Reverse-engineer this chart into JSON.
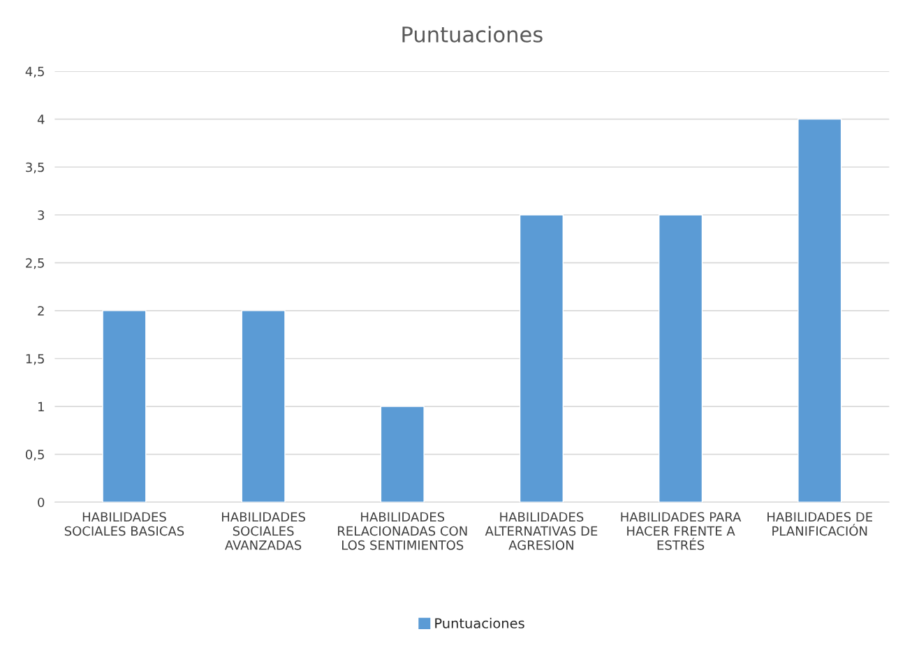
{
  "chart_data": {
    "type": "bar",
    "title": "Puntuaciones",
    "categories": [
      "HABILIDADES SOCIALES BASICAS",
      "HABILIDADES SOCIALES AVANZADAS",
      "HABILIDADES RELACIONADAS CON LOS SENTIMIENTOS",
      "HABILIDADES ALTERNATIVAS DE AGRESION",
      "HABILIDADES PARA HACER FRENTE A ESTRÉS",
      "HABILIDADES DE PLANIFICACIÓN"
    ],
    "series": [
      {
        "name": "Puntuaciones",
        "color": "#5b9bd5",
        "values": [
          2,
          2,
          1,
          3,
          3,
          4
        ]
      }
    ],
    "ylim": [
      0,
      4.5
    ],
    "yticks": [
      0,
      {
        "value": 0.5,
        "label": "0,5"
      },
      1,
      {
        "value": 1.5,
        "label": "1,5"
      },
      2,
      {
        "value": 2.5,
        "label": "2,5"
      },
      3,
      {
        "value": 3.5,
        "label": "3,5"
      },
      4,
      {
        "value": 4.5,
        "label": "4,5"
      }
    ],
    "grid": "y",
    "legend": "bottom"
  }
}
